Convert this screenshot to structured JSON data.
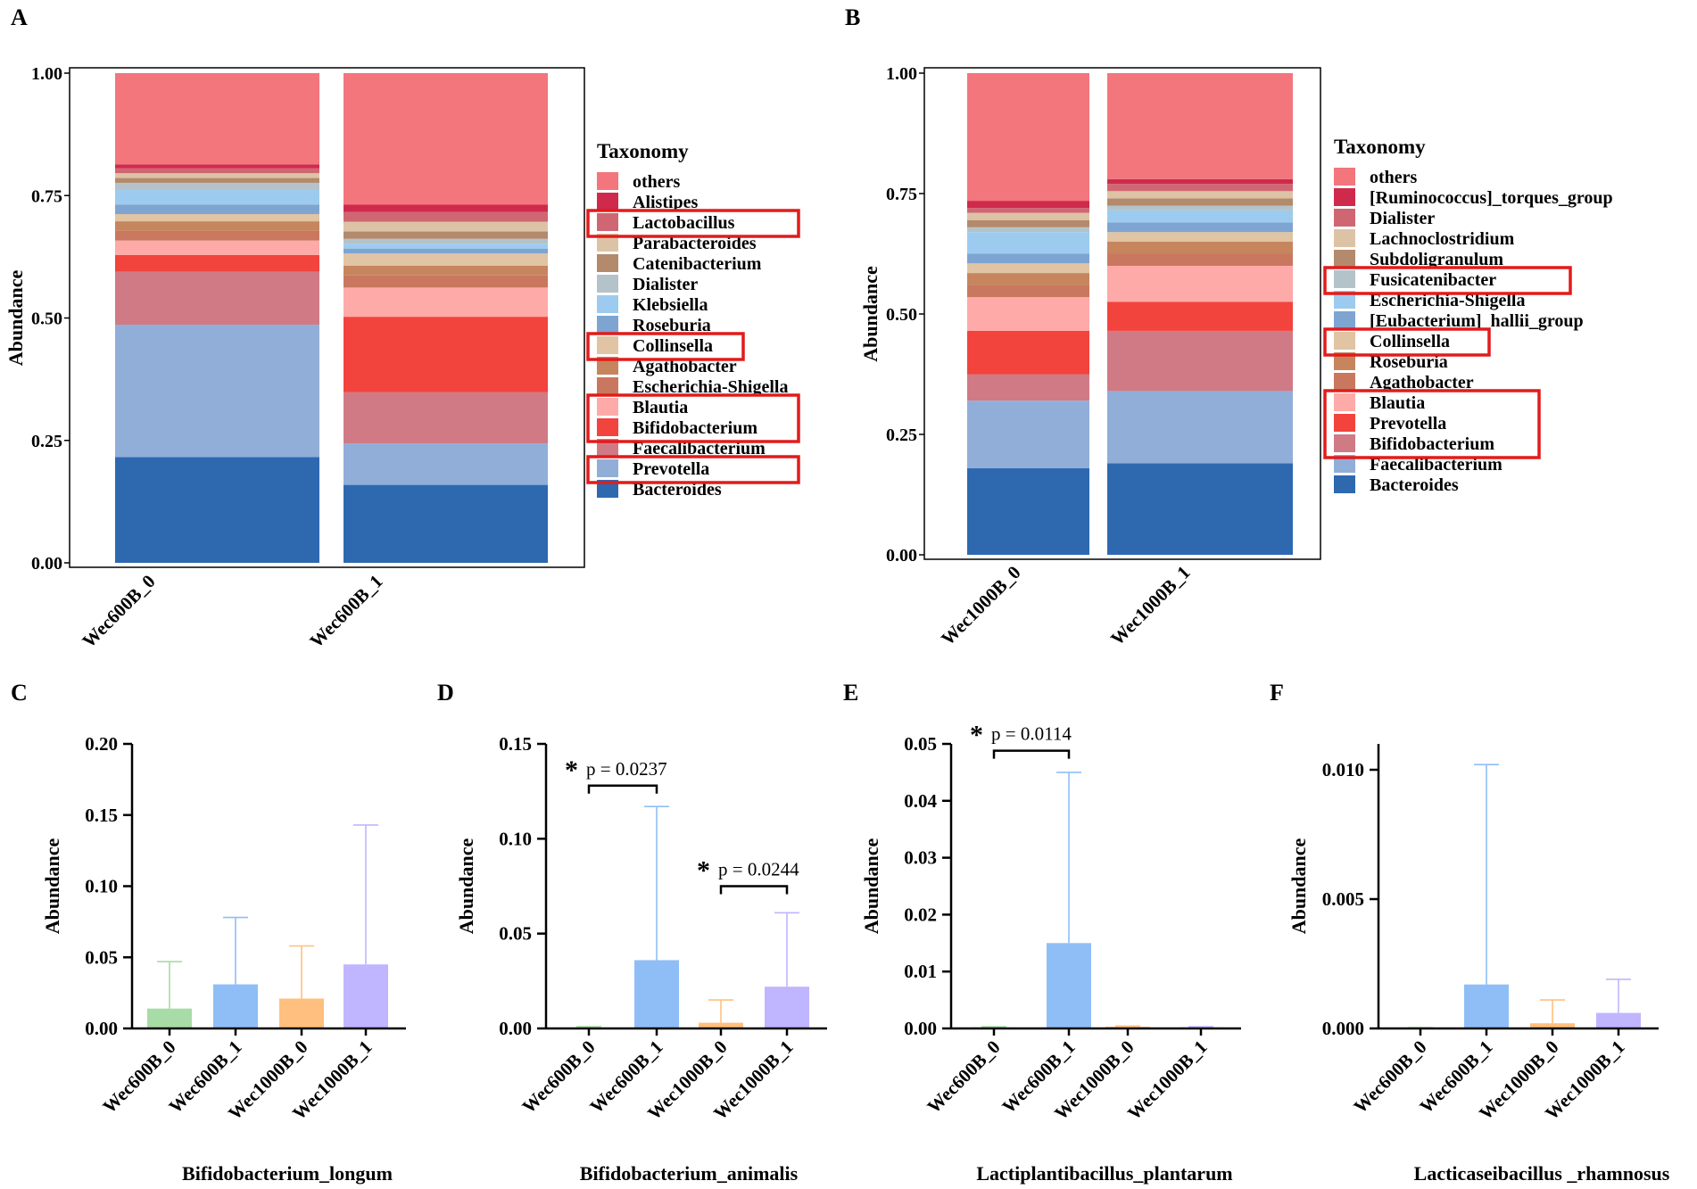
{
  "panels": [
    "A",
    "B",
    "C",
    "D",
    "E",
    "F"
  ],
  "stack_legend_title": "Taxonomy",
  "colors": {
    "others": "#f2767c",
    "alt1": "#cf2a4c",
    "alt2": "#cf6773",
    "tan_light": "#ddc3a6",
    "tan": "#b38a6c",
    "tan2": "#c99a80",
    "gray_blue": "#b4c3ca",
    "light_blue": "#9ccbef",
    "mid_blue": "#7ea4d2",
    "peach": "#e0c4a3",
    "brownish": "#c7855e",
    "salmon": "#c9785f",
    "pink_light": "#fdaaa8",
    "red": "#f2433d",
    "rose": "#d07a85",
    "blue_light": "#90aed8",
    "blue_dark": "#2e69b0",
    "highlight": "#e21b1b",
    "green": "#a8dca6",
    "azure": "#8fbef6",
    "orange": "#ffbf7e",
    "violet": "#c0b5ff"
  },
  "chart_data": [
    {
      "panel": "A",
      "type": "bar",
      "stacked": true,
      "categories": [
        "Wec600B_0",
        "Wec600B_1"
      ],
      "ylabel": "Abundance",
      "ylim": [
        0,
        1.0
      ],
      "yticks": [
        "0.00",
        "0.25",
        "0.50",
        "0.75",
        "1.00"
      ],
      "legend_title": "Taxonomy",
      "series": [
        {
          "name": "Bacteroides",
          "color": "#2e69b0",
          "values": [
            0.22,
            0.16
          ]
        },
        {
          "name": "Prevotella",
          "color": "#90aed8",
          "values": [
            0.275,
            0.085
          ],
          "highlight": true
        },
        {
          "name": "Faecalibacterium",
          "color": "#d07a85",
          "values": [
            0.11,
            0.105
          ]
        },
        {
          "name": "Bifidobacterium",
          "color": "#f2433d",
          "values": [
            0.035,
            0.155
          ],
          "highlight": true
        },
        {
          "name": "Blautia",
          "color": "#fdaaa8",
          "values": [
            0.03,
            0.06
          ],
          "highlight": true
        },
        {
          "name": "Escherichia-Shigella",
          "color": "#c9785f",
          "values": [
            0.02,
            0.025
          ]
        },
        {
          "name": "Agathobacter",
          "color": "#c7855e",
          "values": [
            0.02,
            0.02
          ]
        },
        {
          "name": "Collinsella",
          "color": "#e0c4a3",
          "values": [
            0.015,
            0.025
          ],
          "highlight": true
        },
        {
          "name": "Roseburia",
          "color": "#7ea4d2",
          "values": [
            0.02,
            0.01
          ]
        },
        {
          "name": "Klebsiella",
          "color": "#9ccbef",
          "values": [
            0.03,
            0.01
          ]
        },
        {
          "name": "Dialister",
          "color": "#b4c3ca",
          "values": [
            0.015,
            0.01
          ]
        },
        {
          "name": "Catenibacterium",
          "color": "#b38a6c",
          "values": [
            0.01,
            0.015
          ]
        },
        {
          "name": "Parabacteroides",
          "color": "#ddc3a6",
          "values": [
            0.01,
            0.02
          ]
        },
        {
          "name": "Lactobacillus",
          "color": "#cf6773",
          "values": [
            0.01,
            0.02
          ],
          "highlight": true
        },
        {
          "name": "Alistipes",
          "color": "#cf2a4c",
          "values": [
            0.008,
            0.015
          ]
        },
        {
          "name": "others",
          "color": "#f2767c",
          "values": [
            0.19,
            0.27
          ]
        }
      ]
    },
    {
      "panel": "B",
      "type": "bar",
      "stacked": true,
      "categories": [
        "Wec1000B_0",
        "Wec1000B_1"
      ],
      "ylabel": "Abundance",
      "ylim": [
        0,
        1.0
      ],
      "yticks": [
        "0.00",
        "0.25",
        "0.50",
        "0.75",
        "1.00"
      ],
      "legend_title": "Taxonomy",
      "series": [
        {
          "name": "Bacteroides",
          "color": "#2e69b0",
          "values": [
            0.18,
            0.19
          ]
        },
        {
          "name": "Faecalibacterium",
          "color": "#90aed8",
          "values": [
            0.14,
            0.15
          ]
        },
        {
          "name": "Bifidobacterium",
          "color": "#d07a85",
          "values": [
            0.055,
            0.125
          ],
          "highlight": true
        },
        {
          "name": "Prevotella",
          "color": "#f2433d",
          "values": [
            0.09,
            0.06
          ],
          "highlight": true
        },
        {
          "name": "Blautia",
          "color": "#fdaaa8",
          "values": [
            0.07,
            0.075
          ],
          "highlight": true
        },
        {
          "name": "Agathobacter",
          "color": "#c9785f",
          "values": [
            0.025,
            0.025
          ]
        },
        {
          "name": "Roseburia",
          "color": "#c7855e",
          "values": [
            0.025,
            0.025
          ]
        },
        {
          "name": "Collinsella",
          "color": "#e0c4a3",
          "values": [
            0.02,
            0.02
          ],
          "highlight": true
        },
        {
          "name": "[Eubacterium]_hallii_group",
          "color": "#7ea4d2",
          "values": [
            0.02,
            0.02
          ]
        },
        {
          "name": "Escherichia-Shigella",
          "color": "#9ccbef",
          "values": [
            0.045,
            0.025
          ],
          "highlight": true
        },
        {
          "name": "Fusicatenibacter",
          "color": "#b4c3ca",
          "values": [
            0.01,
            0.01
          ]
        },
        {
          "name": "Subdoligranulum",
          "color": "#b38a6c",
          "values": [
            0.015,
            0.015
          ]
        },
        {
          "name": "Lachnoclostridium",
          "color": "#ddc3a6",
          "values": [
            0.015,
            0.015
          ]
        },
        {
          "name": "Dialister",
          "color": "#cf6773",
          "values": [
            0.01,
            0.015
          ]
        },
        {
          "name": "[Ruminococcus]_torques_group",
          "color": "#cf2a4c",
          "values": [
            0.015,
            0.01
          ]
        },
        {
          "name": "others",
          "color": "#f2767c",
          "values": [
            0.265,
            0.22
          ]
        }
      ]
    },
    {
      "panel": "C",
      "type": "bar",
      "title": "Bifidobacterium_longum",
      "ylabel": "Abundance",
      "categories": [
        "Wec600B_0",
        "Wec600B_1",
        "Wec1000B_0",
        "Wec1000B_1"
      ],
      "ylim": [
        0,
        0.2
      ],
      "yticks": [
        "0.00",
        "0.05",
        "0.10",
        "0.15",
        "0.20"
      ],
      "values": [
        0.014,
        0.031,
        0.021,
        0.045
      ],
      "errors": [
        0.047,
        0.078,
        0.058,
        0.143
      ],
      "significance": []
    },
    {
      "panel": "D",
      "type": "bar",
      "title": "Bifidobacterium_animalis",
      "ylabel": "Abundance",
      "categories": [
        "Wec600B_0",
        "Wec600B_1",
        "Wec1000B_0",
        "Wec1000B_1"
      ],
      "ylim": [
        0,
        0.15
      ],
      "yticks": [
        "0.00",
        "0.05",
        "0.10",
        "0.15"
      ],
      "values": [
        0.0005,
        0.036,
        0.003,
        0.022
      ],
      "errors": [
        0.001,
        0.117,
        0.015,
        0.061
      ],
      "significance": [
        {
          "from": 0,
          "to": 1,
          "star": "*",
          "label": "p = 0.0237",
          "level": 0.128
        },
        {
          "from": 2,
          "to": 3,
          "star": "*",
          "label": "p = 0.0244",
          "level": 0.075
        }
      ]
    },
    {
      "panel": "E",
      "type": "bar",
      "title": "Lactiplantibacillus_plantarum",
      "ylabel": "Abundance",
      "categories": [
        "Wec600B_0",
        "Wec600B_1",
        "Wec1000B_0",
        "Wec1000B_1"
      ],
      "ylim": [
        0,
        0.05
      ],
      "yticks": [
        "0.00",
        "0.01",
        "0.02",
        "0.03",
        "0.04",
        "0.05"
      ],
      "values": [
        0.0002,
        0.015,
        0.0003,
        0.0002
      ],
      "errors": [
        0.0003,
        0.045,
        0.0004,
        0.0003
      ],
      "significance": [
        {
          "from": 0,
          "to": 1,
          "star": "*",
          "label": "p = 0.0114",
          "level": 0.0488
        }
      ]
    },
    {
      "panel": "F",
      "type": "bar",
      "title": "Lacticaseibacillus _rhamnosus",
      "ylabel": "Abundance",
      "categories": [
        "Wec600B_0",
        "Wec600B_1",
        "Wec1000B_0",
        "Wec1000B_1"
      ],
      "ylim": [
        0,
        0.011
      ],
      "yticks": [
        "0.000",
        "0.005",
        "0.010"
      ],
      "ytick_values": [
        0,
        0.005,
        0.01
      ],
      "values": [
        2e-05,
        0.0017,
        0.0002,
        0.0006
      ],
      "errors": [
        3e-05,
        0.0102,
        0.0011,
        0.0019
      ],
      "significance": []
    }
  ]
}
